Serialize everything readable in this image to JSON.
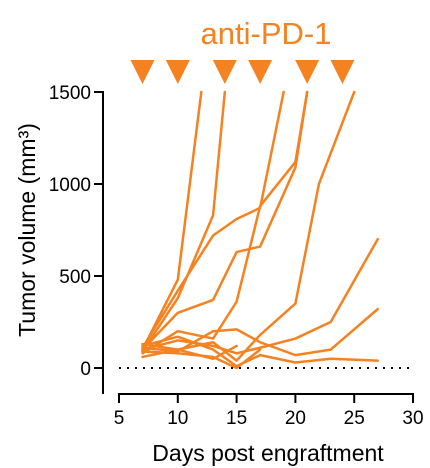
{
  "chart_data": {
    "type": "line",
    "title": "anti-PD-1",
    "xlabel": "Days post engraftment",
    "ylabel": "Tumor volume (mm³)",
    "xlim": [
      5,
      30
    ],
    "ylim": [
      0,
      1500
    ],
    "xticks": [
      5,
      10,
      15,
      20,
      25,
      30
    ],
    "yticks": [
      0,
      500,
      1000,
      1500
    ],
    "reference_line": {
      "y": 0,
      "style": "dotted"
    },
    "treatment_days": [
      7,
      10,
      14,
      17,
      21,
      24
    ],
    "color": "#F58220",
    "series": [
      {
        "x": [
          7,
          10,
          12
        ],
        "y": [
          100,
          480,
          1500
        ]
      },
      {
        "x": [
          7,
          10,
          13,
          14
        ],
        "y": [
          90,
          380,
          830,
          1500
        ]
      },
      {
        "x": [
          7,
          10,
          13,
          15,
          17,
          19
        ],
        "y": [
          110,
          420,
          720,
          810,
          870,
          1500
        ]
      },
      {
        "x": [
          7,
          10,
          13,
          15,
          17,
          20,
          21
        ],
        "y": [
          100,
          300,
          370,
          630,
          660,
          1090,
          1500
        ]
      },
      {
        "x": [
          7,
          10,
          13,
          15,
          17,
          20,
          21
        ],
        "y": [
          80,
          200,
          160,
          360,
          880,
          1120,
          1500
        ]
      },
      {
        "x": [
          7,
          10,
          13,
          15,
          17,
          20,
          22,
          25
        ],
        "y": [
          60,
          100,
          140,
          40,
          180,
          350,
          1000,
          1500
        ]
      },
      {
        "x": [
          7,
          10,
          13,
          15,
          17,
          20,
          23,
          27
        ],
        "y": [
          100,
          150,
          120,
          80,
          110,
          160,
          250,
          700
        ]
      },
      {
        "x": [
          7,
          10,
          13,
          15,
          17,
          20,
          23,
          27
        ],
        "y": [
          110,
          90,
          200,
          210,
          140,
          70,
          100,
          320
        ]
      },
      {
        "x": [
          7,
          10,
          13,
          15,
          17,
          20,
          23,
          27
        ],
        "y": [
          120,
          170,
          100,
          10,
          70,
          30,
          50,
          40
        ]
      },
      {
        "x": [
          7,
          10,
          13,
          15,
          17
        ],
        "y": [
          90,
          80,
          60,
          0,
          100
        ]
      },
      {
        "x": [
          7,
          10,
          13,
          15
        ],
        "y": [
          130,
          100,
          50,
          120
        ]
      }
    ]
  }
}
